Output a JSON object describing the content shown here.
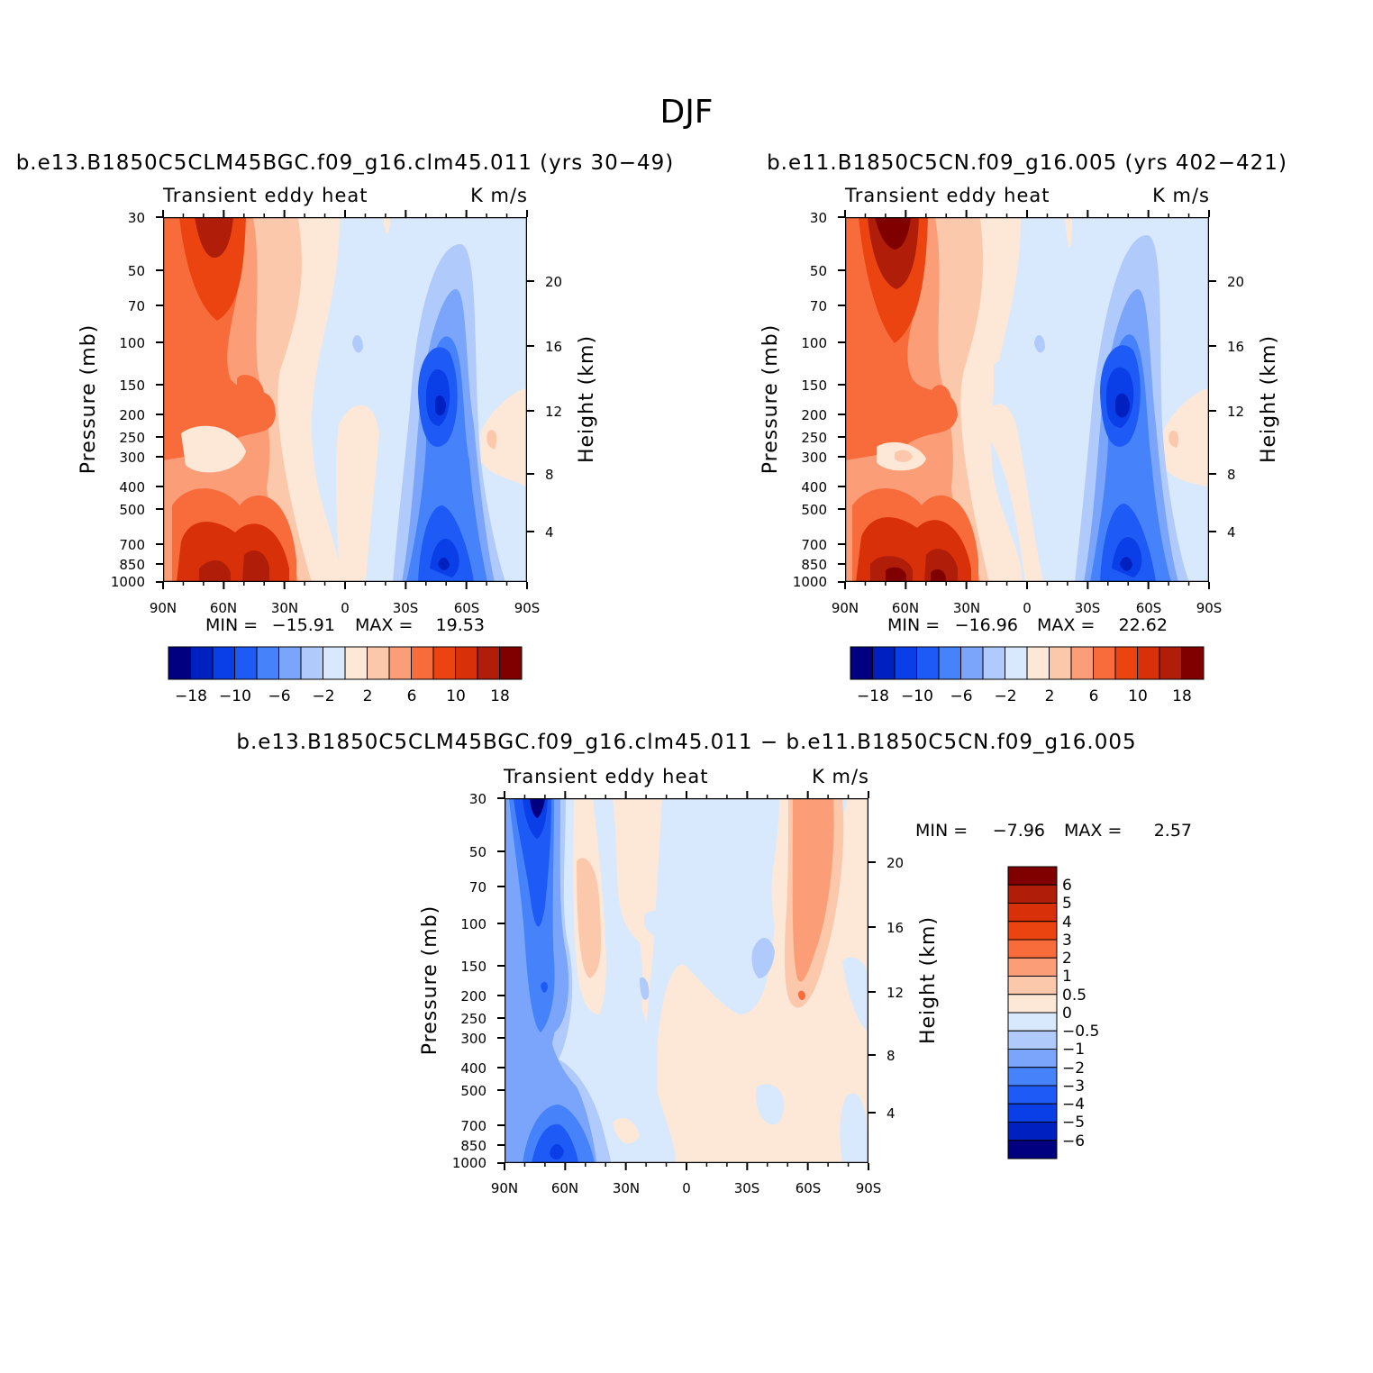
{
  "figure": {
    "title": "DJF",
    "colors": {
      "diverging": [
        "#000080",
        "#0020c0",
        "#0a3ee6",
        "#1e5af5",
        "#4682fa",
        "#7aa5fb",
        "#b0cafc",
        "#d8e8fd",
        "#fde8d8",
        "#fcc8ac",
        "#fb9e78",
        "#f86c3c",
        "#ec4410",
        "#d83008",
        "#b01e0a",
        "#800000"
      ]
    }
  },
  "chart_data": [
    {
      "type": "contour",
      "title": "b.e13.B1850C5CLM45BGC.f09_g16.clm45.011 (yrs 30−49)",
      "subtitle_left": "Transient eddy heat",
      "subtitle_right": "K m/s",
      "ylabel": "Pressure (mb)",
      "ylabel_right": "Height (km)",
      "x_ticks": [
        "90N",
        "60N",
        "30N",
        "0",
        "30S",
        "60S",
        "90S"
      ],
      "y_ticks": [
        "30",
        "50",
        "70",
        "100",
        "150",
        "200",
        "250",
        "300",
        "400",
        "500",
        "700",
        "850",
        "1000"
      ],
      "y_ticks_right": [
        "20",
        "16",
        "12",
        "8",
        "4"
      ],
      "stats": {
        "min_label": "MIN =",
        "min": "−15.91",
        "max_label": "MAX =",
        "max": "19.53"
      },
      "colorbar_labels": [
        "−18",
        "−10",
        "−6",
        "−2",
        "2",
        "6",
        "10",
        "18"
      ],
      "features": [
        {
          "lat": 64,
          "p": 35,
          "value": 17
        },
        {
          "lat": 65,
          "p": 950,
          "value": 19.5
        },
        {
          "lat": 45,
          "p": 920,
          "value": 16
        },
        {
          "lat": 47,
          "p": 190,
          "value": 9
        },
        {
          "lat": -48,
          "p": 200,
          "value": -15
        },
        {
          "lat": -54,
          "p": 880,
          "value": -15.9
        }
      ]
    },
    {
      "type": "contour",
      "title": "b.e11.B1850C5CN.f09_g16.005 (yrs 402−421)",
      "subtitle_left": "Transient eddy heat",
      "subtitle_right": "K m/s",
      "ylabel": "Pressure (mb)",
      "ylabel_right": "Height (km)",
      "x_ticks": [
        "90N",
        "60N",
        "30N",
        "0",
        "30S",
        "60S",
        "90S"
      ],
      "y_ticks": [
        "30",
        "50",
        "70",
        "100",
        "150",
        "200",
        "250",
        "300",
        "400",
        "500",
        "700",
        "850",
        "1000"
      ],
      "y_ticks_right": [
        "20",
        "16",
        "12",
        "8",
        "4"
      ],
      "stats": {
        "min_label": "MIN =",
        "min": "−16.96",
        "max_label": "MAX =",
        "max": "22.62"
      },
      "colorbar_labels": [
        "−18",
        "−10",
        "−6",
        "−2",
        "2",
        "6",
        "10",
        "18"
      ],
      "features": [
        {
          "lat": 68,
          "p": 35,
          "value": 22.6
        },
        {
          "lat": 66,
          "p": 950,
          "value": 21
        },
        {
          "lat": 42,
          "p": 950,
          "value": 19
        },
        {
          "lat": 45,
          "p": 200,
          "value": 9
        },
        {
          "lat": -48,
          "p": 200,
          "value": -16.5
        },
        {
          "lat": -54,
          "p": 880,
          "value": -16.9
        }
      ]
    },
    {
      "type": "contour",
      "title": "b.e13.B1850C5CLM45BGC.f09_g16.clm45.011 − b.e11.B1850C5CN.f09_g16.005",
      "subtitle_left": "Transient eddy heat",
      "subtitle_right": "K m/s",
      "ylabel": "Pressure (mb)",
      "ylabel_right": "Height (km)",
      "x_ticks": [
        "90N",
        "60N",
        "30N",
        "0",
        "30S",
        "60S",
        "90S"
      ],
      "y_ticks": [
        "30",
        "50",
        "70",
        "100",
        "150",
        "200",
        "250",
        "300",
        "400",
        "500",
        "700",
        "850",
        "1000"
      ],
      "y_ticks_right": [
        "20",
        "16",
        "12",
        "8",
        "4"
      ],
      "stats": {
        "min_label": "MIN =",
        "min": "−7.96",
        "max_label": "MAX =",
        "max": "2.57"
      },
      "colorbar_labels": [
        "6",
        "5",
        "4",
        "3",
        "2",
        "1",
        "0.5",
        "0",
        "−0.5",
        "−1",
        "−2",
        "−3",
        "−4",
        "−5",
        "−6"
      ],
      "features": [
        {
          "lat": 74,
          "p": 32,
          "value": -7.96
        },
        {
          "lat": 70,
          "p": 200,
          "value": -4.5
        },
        {
          "lat": 62,
          "p": 920,
          "value": -4
        },
        {
          "lat": 52,
          "p": 120,
          "value": 2
        },
        {
          "lat": -59,
          "p": 200,
          "value": 2.57
        }
      ]
    }
  ]
}
